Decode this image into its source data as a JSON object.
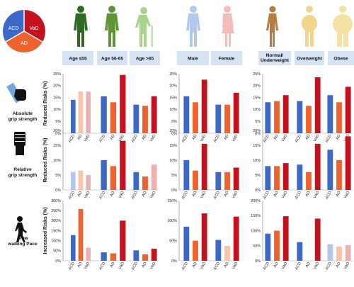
{
  "colors": {
    "ACD": "#3c68c8",
    "AD": "#f0622d",
    "VaD": "#c4121f",
    "header_bg": "#d6e3f2"
  },
  "pie_labels": [
    "ACD",
    "VaD",
    "AD"
  ],
  "groups": [
    {
      "label": "Age ≤55"
    },
    {
      "label": "Age 56-65"
    },
    {
      "label": "Age >65"
    },
    {
      "label": "Male"
    },
    {
      "label": "Female"
    },
    {
      "label": "Normal/\nUnderweight"
    },
    {
      "label": "Overweight"
    },
    {
      "label": "Obese"
    }
  ],
  "icons": [
    "human-figure-icon",
    "human-figure-icon",
    "elderly-cane-figure-icon",
    "male-figure-icon",
    "female-figure-icon",
    "slim-figure-icon",
    "overweight-figure-icon",
    "obese-figure-icon",
    "dynamometer-hand-icon",
    "raised-fist-icon",
    "walking-person-icon"
  ],
  "chart_data": {
    "type": "bar",
    "categories": [
      "ACD",
      "AD",
      "VaD"
    ],
    "rows": [
      {
        "label": "Absolute\ngrip strength",
        "ylabel": "Reduced Risks (%)",
        "sections": [
          {
            "ylim": [
              0,
              25
            ],
            "ticks": [
              "0%",
              "5%",
              "10%",
              "15%",
              "20%",
              "25%"
            ],
            "groups": [
              [
                14,
                17.5,
                17.5
              ],
              [
                15.5,
                13,
                24.5
              ],
              [
                12,
                11.5,
                15.5
              ]
            ]
          },
          {
            "ylim": [
              0,
              25
            ],
            "ticks": [
              "0%",
              "5%",
              "10%",
              "15%",
              "20%",
              "25%"
            ],
            "groups": [
              [
                15.5,
                13,
                22.5
              ],
              [
                12,
                12,
                17
              ]
            ]
          },
          {
            "ylim": [
              0,
              25
            ],
            "ticks": [
              "0%",
              "5%",
              "10%",
              "15%",
              "20%",
              "25%"
            ],
            "groups": [
              [
                13,
                13.5,
                16
              ],
              [
                13.5,
                11.5,
                23.5
              ],
              [
                16,
                13,
                19.5
              ]
            ]
          }
        ],
        "faded": [
          [
            0,
            1
          ],
          [
            0,
            2
          ]
        ]
      },
      {
        "label": "Relative\ngrip strength",
        "ylabel": "Reduced Risks (%)",
        "sections": [
          {
            "ylim": [
              0,
              20
            ],
            "ticks": [
              "0%",
              "5%",
              "10%",
              "15%",
              "20%"
            ],
            "groups": [
              [
                6,
                6.5,
                5
              ],
              [
                10,
                8,
                16.5
              ],
              [
                6,
                4.5,
                8.5
              ]
            ]
          },
          {
            "ylim": [
              0,
              20
            ],
            "ticks": [
              "0%",
              "5%",
              "10%",
              "15%",
              "20%"
            ],
            "groups": [
              [
                10,
                6.5,
                15.5
              ],
              [
                6,
                6,
                7.5
              ]
            ]
          },
          {
            "ylim": [
              0,
              20
            ],
            "ticks": [
              "0%",
              "5%",
              "10%",
              "15%",
              "20%"
            ],
            "groups": [
              [
                8,
                8,
                9
              ],
              [
                8.5,
                6,
                15.5
              ],
              [
                13.5,
                10,
                18
              ]
            ]
          }
        ],
        "faded": [
          [
            0,
            0
          ],
          [
            0,
            1
          ],
          [
            0,
            2
          ],
          [
            2,
            2
          ]
        ]
      },
      {
        "label": "Slow\nwalking Pace",
        "ylabel": "Increased Risks (%)",
        "sections": [
          {
            "ylim": [
              0,
              300
            ],
            "ticks": [
              "0%",
              "50%",
              "100%",
              "150%",
              "200%",
              "250%",
              "300%"
            ],
            "groups": [
              [
                128,
                258,
                65
              ],
              [
                42,
                37,
                200
              ],
              [
                52,
                32,
                60
              ]
            ]
          },
          {
            "ylim": [
              0,
              150
            ],
            "ticks": [
              "0%",
              "50%",
              "100%",
              "150%"
            ],
            "groups": [
              [
                85,
                50,
                118
              ],
              [
                52,
                37,
                110
              ]
            ]
          },
          {
            "ylim": [
              0,
              200
            ],
            "ticks": [
              "0%",
              "50%",
              "100%",
              "150%",
              "200%"
            ],
            "groups": [
              [
                90,
                100,
                148
              ],
              [
                62,
                null,
                140
              ],
              [
                55,
                47,
                52
              ]
            ]
          }
        ],
        "faded": [
          [
            0,
            2
          ],
          [
            4,
            1
          ],
          [
            7,
            0
          ],
          [
            7,
            1
          ],
          [
            7,
            2
          ]
        ]
      }
    ]
  }
}
